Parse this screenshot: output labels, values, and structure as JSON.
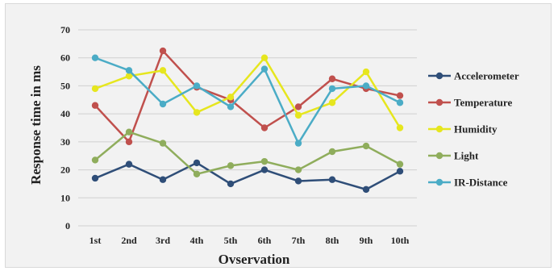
{
  "chart_data": {
    "type": "line",
    "xlabel": "Ovservation",
    "ylabel": "Response time in  ms",
    "categories": [
      "1st",
      "2nd",
      "3rd",
      "4th",
      "5th",
      "6th",
      "7th",
      "8th",
      "9th",
      "10th"
    ],
    "ylim": [
      0,
      70
    ],
    "yticks": [
      0,
      10,
      20,
      30,
      40,
      50,
      60,
      70
    ],
    "grid": true,
    "legend_position": "right",
    "series": [
      {
        "name": "Accelerometer",
        "color": "#2f4e78",
        "values": [
          17,
          22,
          16.5,
          22.5,
          15,
          20,
          16,
          16.5,
          13,
          19.5
        ]
      },
      {
        "name": "Temperature",
        "color": "#c0504d",
        "values": [
          43,
          30,
          62.5,
          49.5,
          45,
          35,
          42.5,
          52.5,
          49,
          46.5
        ]
      },
      {
        "name": "Humidity",
        "color": "#e6e61e",
        "values": [
          49,
          53.5,
          55.5,
          40.5,
          46,
          60,
          39.5,
          44,
          55,
          35
        ]
      },
      {
        "name": "Light",
        "color": "#8fad5c",
        "values": [
          23.5,
          33.5,
          29.5,
          18.5,
          21.5,
          23,
          20,
          26.5,
          28.5,
          22
        ]
      },
      {
        "name": "IR-Distance",
        "color": "#4bacc6",
        "values": [
          60,
          55.5,
          43.5,
          50,
          42.5,
          56,
          29.5,
          49,
          50,
          44
        ]
      }
    ]
  }
}
